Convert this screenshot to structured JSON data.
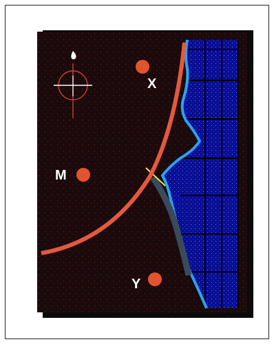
{
  "map": {
    "markers": [
      {
        "id": "X",
        "label": "X"
      },
      {
        "id": "M",
        "label": "M"
      },
      {
        "id": "Y",
        "label": "Y"
      }
    ],
    "compass_icon": "crosshair-compass-icon",
    "colors": {
      "land": "#1b0a0c",
      "land_speckle": "#6a1a1f",
      "sea": "#0a0e93",
      "sea_grid": "#000000",
      "coast_glow": "#2aa3f0",
      "arc": "#e25a3e",
      "marker": "#e2542e",
      "fault": "#3a4a5a",
      "fault_mark": "#e8e84a",
      "label": "#ffffff"
    }
  }
}
